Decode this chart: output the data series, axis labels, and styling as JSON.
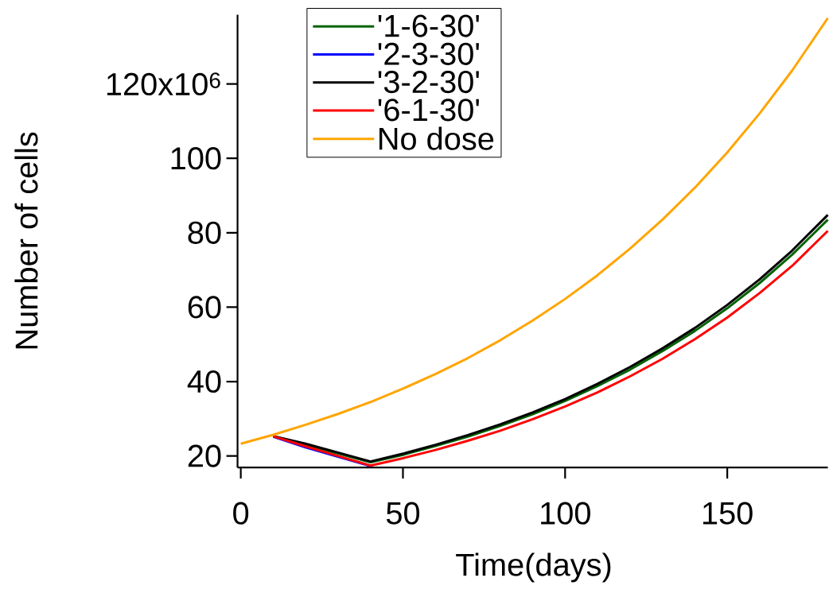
{
  "chart_data": {
    "type": "line",
    "xlabel": "Time(days)",
    "ylabel": "Number of cells",
    "xlim": [
      -1,
      181
    ],
    "ylim": [
      16.9,
      138.6
    ],
    "xticks": [
      0,
      50,
      100,
      150
    ],
    "yticks": [
      20,
      40,
      60,
      80,
      100,
      {
        "value": 120,
        "label": null
      }
    ],
    "annotations": [
      "120x10$^{6}$"
    ],
    "grid": false,
    "legend": "top",
    "series": [
      {
        "name": "'1-6-30'",
        "color": "#006400",
        "x": [
          10,
          20,
          40,
          50,
          60,
          70,
          80,
          90,
          100,
          110,
          120,
          130,
          140,
          150,
          160,
          170,
          181
        ],
        "values": [
          25.3,
          23.0,
          18.3,
          20.3,
          22.7,
          25.2,
          28.1,
          31.2,
          34.8,
          38.8,
          43.2,
          48.2,
          53.6,
          59.7,
          66.5,
          74.1,
          83.5
        ]
      },
      {
        "name": "'2-3-30'",
        "color": "#0000ff",
        "x": [
          10,
          20,
          30,
          40
        ],
        "values": [
          25.2,
          22.3,
          19.8,
          17.3
        ]
      },
      {
        "name": "'3-2-30'",
        "color": "#000000",
        "x": [
          10,
          20,
          30,
          40,
          50,
          60,
          70,
          80,
          90,
          100,
          110,
          120,
          130,
          140,
          150,
          160,
          170,
          181
        ],
        "values": [
          25.3,
          23.3,
          20.9,
          18.5,
          20.6,
          23.0,
          25.6,
          28.5,
          31.7,
          35.3,
          39.4,
          43.9,
          48.9,
          54.4,
          60.6,
          67.5,
          75.2,
          84.8
        ]
      },
      {
        "name": "'6-1-30'",
        "color": "#ff0000",
        "x": [
          10,
          20,
          30,
          40,
          50,
          60,
          70,
          80,
          90,
          100,
          110,
          120,
          130,
          140,
          150,
          160,
          170,
          181
        ],
        "values": [
          25.3,
          22.6,
          20.0,
          17.4,
          19.4,
          21.6,
          24.1,
          26.8,
          29.9,
          33.3,
          37.1,
          41.4,
          46.1,
          51.4,
          57.2,
          63.8,
          71.1,
          80.5
        ]
      },
      {
        "name": "No dose",
        "color": "#ffa500",
        "x": [
          0,
          10,
          20,
          30,
          40,
          50,
          60,
          70,
          80,
          90,
          100,
          110,
          120,
          130,
          140,
          150,
          160,
          170,
          181
        ],
        "values": [
          23.3,
          25.7,
          28.4,
          31.3,
          34.5,
          38.1,
          42.0,
          46.3,
          51.1,
          56.4,
          62.2,
          68.6,
          75.7,
          83.5,
          92.1,
          101.6,
          112.1,
          123.6,
          137.7
        ]
      }
    ]
  }
}
